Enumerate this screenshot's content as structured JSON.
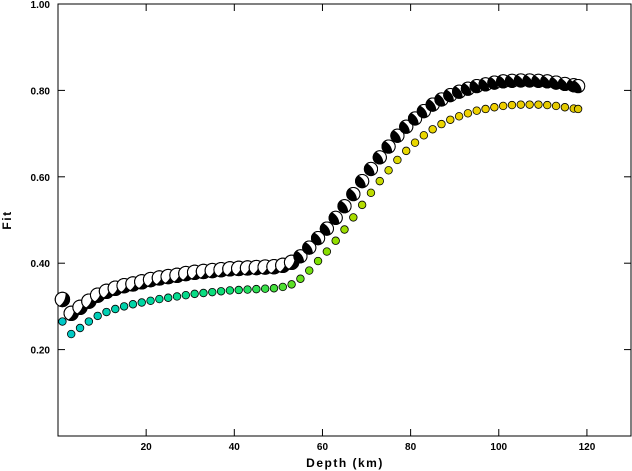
{
  "chart_data": {
    "type": "scatter",
    "xlabel": "Depth (km)",
    "ylabel": "Fit",
    "xlim": [
      0,
      130
    ],
    "ylim": [
      0.0,
      1.0
    ],
    "x_ticks": [
      20,
      40,
      60,
      80,
      100,
      120
    ],
    "x_tick_labels": [
      "20",
      "40",
      "60",
      "80",
      "100",
      "120"
    ],
    "y_ticks": [
      0.2,
      0.4,
      0.6,
      0.8,
      1.0
    ],
    "y_tick_labels": [
      "0.20",
      "0.40",
      "0.60",
      "0.80",
      "1.00"
    ],
    "grid": false,
    "series": [
      {
        "marker": "beachball",
        "x": [
          1,
          3,
          5,
          7,
          9,
          11,
          13,
          15,
          17,
          19,
          21,
          23,
          25,
          27,
          29,
          31,
          33,
          35,
          37,
          39,
          41,
          43,
          45,
          47,
          49,
          51,
          53,
          55,
          57,
          59,
          61,
          63,
          65,
          67,
          69,
          71,
          73,
          75,
          77,
          79,
          81,
          83,
          85,
          87,
          89,
          91,
          93,
          95,
          97,
          99,
          101,
          103,
          105,
          107,
          109,
          111,
          113,
          115,
          117,
          118
        ],
        "y": [
          0.316,
          0.284,
          0.298,
          0.312,
          0.326,
          0.335,
          0.342,
          0.348,
          0.352,
          0.357,
          0.362,
          0.366,
          0.369,
          0.372,
          0.376,
          0.379,
          0.381,
          0.383,
          0.385,
          0.387,
          0.388,
          0.389,
          0.39,
          0.391,
          0.392,
          0.395,
          0.402,
          0.416,
          0.436,
          0.458,
          0.48,
          0.505,
          0.532,
          0.56,
          0.59,
          0.618,
          0.645,
          0.67,
          0.695,
          0.716,
          0.735,
          0.752,
          0.767,
          0.779,
          0.789,
          0.797,
          0.804,
          0.81,
          0.814,
          0.818,
          0.821,
          0.822,
          0.823,
          0.823,
          0.822,
          0.821,
          0.818,
          0.815,
          0.812,
          0.81
        ]
      },
      {
        "marker": "circle",
        "x": [
          1,
          3,
          5,
          7,
          9,
          11,
          13,
          15,
          17,
          19,
          21,
          23,
          25,
          27,
          29,
          31,
          33,
          35,
          37,
          39,
          41,
          43,
          45,
          47,
          49,
          51,
          53,
          55,
          57,
          59,
          61,
          63,
          65,
          67,
          69,
          71,
          73,
          75,
          77,
          79,
          81,
          83,
          85,
          87,
          89,
          91,
          93,
          95,
          97,
          99,
          101,
          103,
          105,
          107,
          109,
          111,
          113,
          115,
          117,
          118
        ],
        "y": [
          0.265,
          0.236,
          0.25,
          0.265,
          0.278,
          0.287,
          0.294,
          0.3,
          0.305,
          0.309,
          0.313,
          0.317,
          0.32,
          0.323,
          0.326,
          0.329,
          0.331,
          0.333,
          0.335,
          0.337,
          0.338,
          0.339,
          0.34,
          0.341,
          0.342,
          0.345,
          0.351,
          0.364,
          0.383,
          0.405,
          0.427,
          0.452,
          0.478,
          0.506,
          0.535,
          0.563,
          0.59,
          0.615,
          0.639,
          0.66,
          0.679,
          0.696,
          0.71,
          0.722,
          0.732,
          0.74,
          0.747,
          0.753,
          0.757,
          0.761,
          0.764,
          0.766,
          0.767,
          0.767,
          0.767,
          0.766,
          0.764,
          0.761,
          0.758,
          0.757
        ]
      }
    ]
  },
  "colors": {
    "beachball_fill": "#000000",
    "beachball_light": "#ffffff",
    "circle_gradient": [
      "#00c8c8",
      "#00d8a0",
      "#10e070",
      "#80e000",
      "#e8d800",
      "#f0d000",
      "#e0c800"
    ]
  }
}
